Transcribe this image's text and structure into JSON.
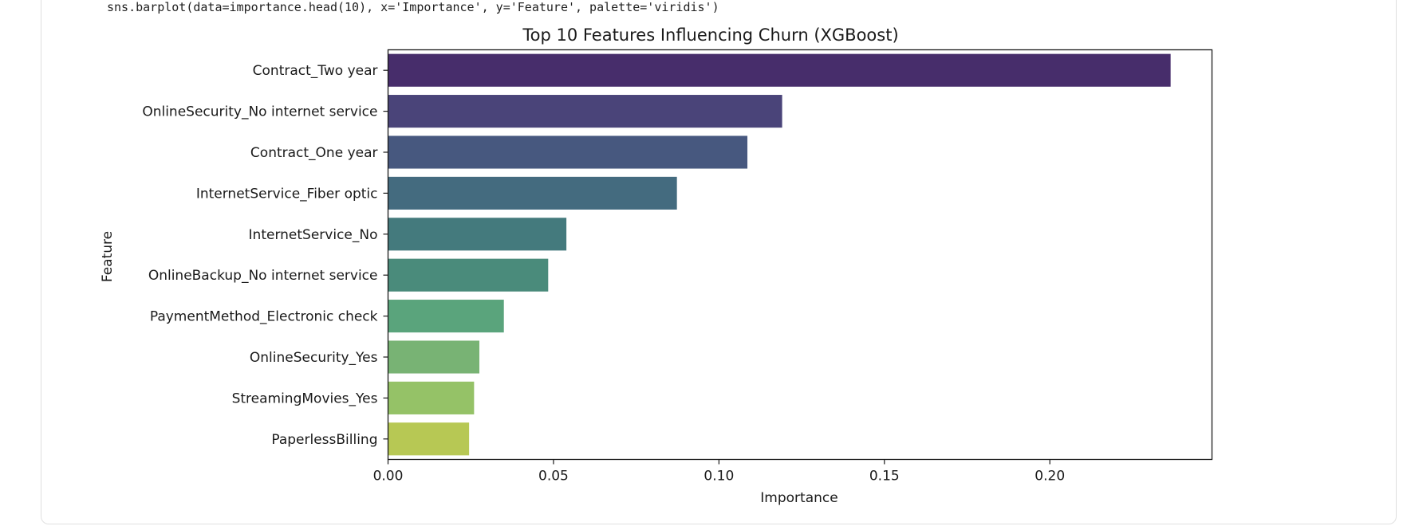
{
  "code": {
    "line": "sns.barplot(data=importance.head(10), x='Importance', y='Feature', palette='viridis')"
  },
  "chart_data": {
    "type": "bar",
    "orientation": "horizontal",
    "title": "Top 10 Features Influencing Churn (XGBoost)",
    "xlabel": "Importance",
    "ylabel": "Feature",
    "categories": [
      "Contract_Two year",
      "OnlineSecurity_No internet service",
      "Contract_One year",
      "InternetService_Fiber optic",
      "InternetService_No",
      "OnlineBackup_No internet service",
      "PaymentMethod_Electronic check",
      "OnlineSecurity_Yes",
      "StreamingMovies_Yes",
      "PaperlessBilling"
    ],
    "values": [
      0.2365,
      0.1191,
      0.1086,
      0.0873,
      0.0539,
      0.0484,
      0.035,
      0.0276,
      0.026,
      0.0245
    ],
    "colors": [
      "#472d6b",
      "#4a4479",
      "#47587f",
      "#446b7f",
      "#447a7d",
      "#4a8b7b",
      "#5aa47c",
      "#78b374",
      "#95c267",
      "#b7c854"
    ],
    "xlim": [
      0,
      0.249
    ],
    "xticks": [
      0.0,
      0.05,
      0.1,
      0.15,
      0.2
    ],
    "xtick_labels": [
      "0.00",
      "0.05",
      "0.10",
      "0.15",
      "0.20"
    ],
    "grid": false,
    "legend": "none"
  }
}
